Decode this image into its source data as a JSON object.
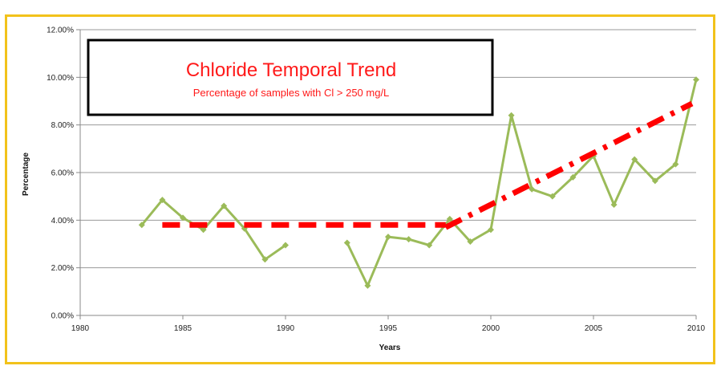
{
  "chart_data": {
    "type": "line",
    "title": "Chloride Temporal Trend",
    "subtitle": "Percentage of samples with Cl > 250 mg/L",
    "xlabel": "Years",
    "ylabel": "Percentage",
    "xlim": [
      1980,
      2010
    ],
    "ylim": [
      0,
      12
    ],
    "x_ticks": [
      1980,
      1985,
      1990,
      1995,
      2000,
      2005,
      2010
    ],
    "y_ticks": [
      0,
      2,
      4,
      6,
      8,
      10,
      12
    ],
    "y_tick_labels": [
      "0.00%",
      "2.00%",
      "4.00%",
      "6.00%",
      "8.00%",
      "10.00%",
      "12.00%"
    ],
    "grid": "horizontal",
    "series": [
      {
        "name": "",
        "color": "#9bbb59",
        "segments": [
          [
            [
              1983,
              3.8
            ],
            [
              1984,
              4.85
            ],
            [
              1985,
              4.1
            ],
            [
              1986,
              3.6
            ],
            [
              1987,
              4.6
            ],
            [
              1988,
              3.65
            ],
            [
              1989,
              2.35
            ],
            [
              1990,
              2.95
            ]
          ],
          [
            [
              1993,
              3.05
            ],
            [
              1994,
              1.25
            ],
            [
              1995,
              3.3
            ],
            [
              1996,
              3.2
            ],
            [
              1997,
              2.95
            ],
            [
              1998,
              4.05
            ],
            [
              1999,
              3.1
            ],
            [
              2000,
              3.6
            ],
            [
              2001,
              8.4
            ],
            [
              2002,
              5.3
            ],
            [
              2003,
              5.0
            ],
            [
              2004,
              5.8
            ],
            [
              2005,
              6.7
            ],
            [
              2006,
              4.65
            ],
            [
              2007,
              6.55
            ],
            [
              2008,
              5.65
            ],
            [
              2009,
              6.35
            ],
            [
              2010,
              9.9
            ]
          ]
        ]
      }
    ],
    "trend_lines": [
      {
        "style": "dashed",
        "color": "#ff0000",
        "points": [
          [
            1984,
            3.8
          ],
          [
            1997.8,
            3.8
          ]
        ]
      },
      {
        "style": "dash-dot",
        "color": "#ff0000",
        "points": [
          [
            1997.8,
            3.7
          ],
          [
            2009.8,
            8.9
          ]
        ]
      }
    ]
  }
}
